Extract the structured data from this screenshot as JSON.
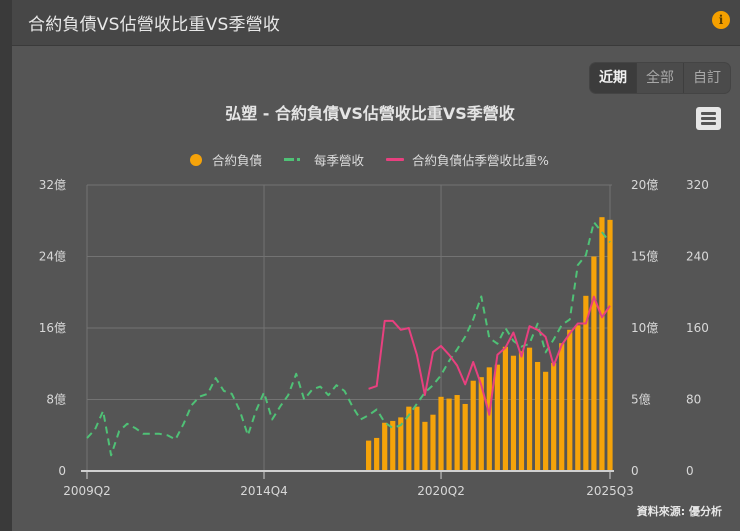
{
  "card": {
    "title": "合約負債VS佔營收比重VS季營收",
    "info_icon": "i"
  },
  "range_selector": {
    "buttons": [
      {
        "label": "近期",
        "active": true
      },
      {
        "label": "全部",
        "active": false
      },
      {
        "label": "自訂",
        "active": false
      }
    ]
  },
  "menu_icon": "hamburger-menu-icon",
  "source_label": "資料來源: 優分析",
  "colors": {
    "bar": "#f5a30a",
    "revenue_line": "#4fc176",
    "ratio_line": "#e8407f",
    "grid": "#737373",
    "background": "#555555"
  },
  "legend": [
    {
      "label": "合約負債",
      "type": "dot",
      "color": "#f5a30a"
    },
    {
      "label": "每季營收",
      "type": "dash",
      "color": "#4fc176"
    },
    {
      "label": "合約負債佔季營收比重%",
      "type": "line",
      "color": "#e8407f"
    }
  ],
  "chart_data": {
    "type": "bar+line",
    "title": "弘塑 - 合約負債VS佔營收比重VS季營收",
    "x_ticks": [
      "2009Q2",
      "2014Q4",
      "2020Q2",
      "2025Q3"
    ],
    "x_start": "2009Q2",
    "x_end": "2025Q3",
    "grid": true,
    "legend_position": "top",
    "axes": {
      "y_left": {
        "label": "合約負債",
        "ticks": [
          "0",
          "8億",
          "16億",
          "24億",
          "32億"
        ],
        "range": [
          0,
          32
        ]
      },
      "y_right1": {
        "label": "每季營收",
        "ticks": [
          "0",
          "5億",
          "10億",
          "15億",
          "20億"
        ],
        "range": [
          0,
          20
        ]
      },
      "y_right2": {
        "label": "合約負債佔季營收比重%",
        "ticks": [
          "0",
          "80",
          "160",
          "240",
          "320"
        ],
        "range": [
          0,
          320
        ]
      }
    },
    "series": [
      {
        "name": "合約負債",
        "type": "bar",
        "axis": "y_left",
        "unit": "億",
        "start": "2018Q1",
        "values": [
          3.4,
          3.7,
          5.4,
          5.6,
          6.0,
          7.2,
          7.2,
          5.5,
          6.3,
          8.3,
          8.1,
          8.5,
          7.5,
          10.1,
          10.5,
          11.6,
          11.9,
          13.9,
          12.9,
          13.4,
          13.8,
          12.2,
          11.1,
          12.1,
          14.3,
          15.8,
          16.3,
          19.6,
          24.0,
          28.4,
          28.1
        ]
      },
      {
        "name": "每季營收",
        "type": "line-dashed",
        "axis": "y_right1",
        "unit": "億",
        "start": "2009Q2",
        "values": [
          2.3,
          2.9,
          4.2,
          1.1,
          2.8,
          3.3,
          3.0,
          2.6,
          2.6,
          2.6,
          2.5,
          2.2,
          3.3,
          4.6,
          5.2,
          5.4,
          6.5,
          5.6,
          5.4,
          4.2,
          2.5,
          4.2,
          5.5,
          3.6,
          4.5,
          5.3,
          6.8,
          5.0,
          5.7,
          5.9,
          5.3,
          6.0,
          5.6,
          4.5,
          3.6,
          3.9,
          4.3,
          3.4,
          3.0,
          3.2,
          3.9,
          4.7,
          5.5,
          6.0,
          6.7,
          7.7,
          8.5,
          9.4,
          10.6,
          12.2,
          9.3,
          8.9,
          10.0,
          9.1,
          8.7,
          8.9,
          10.3,
          8.3,
          9.2,
          10.2,
          10.6,
          14.4,
          15.1,
          17.4,
          16.7,
          16.0
        ]
      },
      {
        "name": "合約負債佔季營收比重%",
        "type": "line",
        "axis": "y_right2",
        "unit": "%",
        "start": "2018Q1",
        "values": [
          92,
          95,
          168,
          168,
          158,
          160,
          130,
          85,
          133,
          140,
          130,
          118,
          97,
          122,
          96,
          63,
          130,
          138,
          155,
          128,
          162,
          158,
          150,
          118,
          141,
          154,
          165,
          165,
          195,
          172,
          185
        ]
      }
    ]
  }
}
